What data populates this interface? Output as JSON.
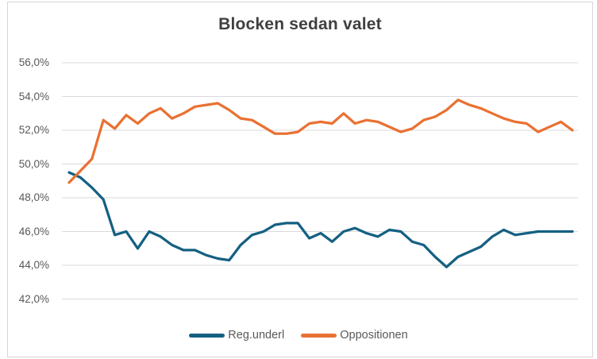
{
  "chart_data": {
    "type": "line",
    "title": "Blocken sedan valet",
    "xlabel": "",
    "ylabel": "",
    "x_axis_labels": "none",
    "ylim": [
      42,
      56
    ],
    "grid": "horizontal",
    "legend_position": "bottom",
    "y_ticks": [
      "56,0%",
      "54,0%",
      "52,0%",
      "50,0%",
      "48,0%",
      "46,0%",
      "44,0%",
      "42,0%"
    ],
    "y_tick_values": [
      56,
      54,
      52,
      50,
      48,
      46,
      44,
      42
    ],
    "series": [
      {
        "name": "Reg.underl",
        "color": "#156082",
        "values": [
          49.5,
          49.2,
          48.6,
          47.9,
          45.8,
          46.0,
          45.0,
          46.0,
          45.7,
          45.2,
          44.9,
          44.9,
          44.6,
          44.4,
          44.3,
          45.2,
          45.8,
          46.0,
          46.4,
          46.5,
          46.5,
          45.6,
          45.9,
          45.4,
          46.0,
          46.2,
          45.9,
          45.7,
          46.1,
          46.0,
          45.4,
          45.2,
          44.5,
          43.9,
          44.5,
          44.8,
          45.1,
          45.7,
          46.1,
          45.8,
          45.9,
          46.0,
          46.0,
          46.0,
          46.0
        ]
      },
      {
        "name": "Oppositionen",
        "color": "#E97132",
        "values": [
          48.9,
          49.6,
          50.3,
          52.6,
          52.1,
          52.9,
          52.4,
          53.0,
          53.3,
          52.7,
          53.0,
          53.4,
          53.5,
          53.6,
          53.2,
          52.7,
          52.6,
          52.2,
          51.8,
          51.8,
          51.9,
          52.4,
          52.5,
          52.4,
          53.0,
          52.4,
          52.6,
          52.5,
          52.2,
          51.9,
          52.1,
          52.6,
          52.8,
          53.2,
          53.8,
          53.5,
          53.3,
          53.0,
          52.7,
          52.5,
          52.4,
          51.9,
          52.2,
          52.5,
          52.0
        ]
      }
    ]
  },
  "frame": {
    "border_color": "#D6D6D6",
    "background": "#ffffff",
    "gridline_color": "#D9D9D9",
    "title_color": "#404040",
    "axis_label_color": "#595959"
  }
}
